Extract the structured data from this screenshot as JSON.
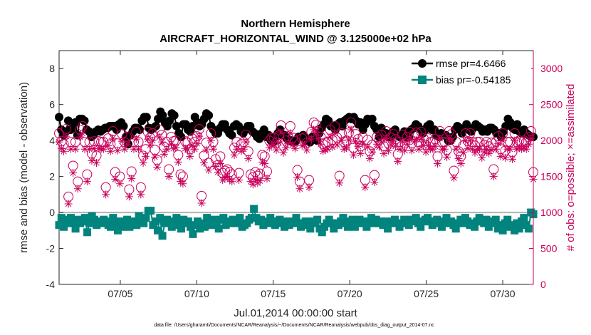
{
  "chart_data": {
    "type": "line",
    "title": "Northern Hemisphere",
    "subtitle": "AIRCRAFT_HORIZONTAL_WIND @ 3.125000e+02 hPa",
    "xlabel": "Jul.01,2014 00:00:00 start",
    "ylabel": "rmse and bias (model - observation)",
    "ylabel_right": "# of obs: o=possible; ×=assimilated",
    "footnote": "data file: /Users/gharamti/Documents/NCAR/Reanalysis/~/Documents/NCAR/Reanalysis/webpub/obs_diag_output_2014-07.nc",
    "xlim": [
      1.0,
      32.0
    ],
    "ylim": [
      -4,
      9
    ],
    "ylim_right": [
      0,
      3250
    ],
    "x_ticks": [
      {
        "day": 5,
        "label": "07/05"
      },
      {
        "day": 10,
        "label": "07/10"
      },
      {
        "day": 15,
        "label": "07/15"
      },
      {
        "day": 20,
        "label": "07/20"
      },
      {
        "day": 25,
        "label": "07/25"
      },
      {
        "day": 30,
        "label": "07/30"
      }
    ],
    "y_ticks": [
      {
        "value": -4,
        "label": "-4"
      },
      {
        "value": -2,
        "label": "-2"
      },
      {
        "value": 0,
        "label": "0"
      },
      {
        "value": 2,
        "label": "2"
      },
      {
        "value": 4,
        "label": "4"
      },
      {
        "value": 6,
        "label": "6"
      },
      {
        "value": 8,
        "label": "8"
      }
    ],
    "y_ticks_right": [
      {
        "value": 0,
        "label": "0"
      },
      {
        "value": 500,
        "label": "500"
      },
      {
        "value": 1000,
        "label": "1000"
      },
      {
        "value": 1500,
        "label": "1500"
      },
      {
        "value": 2000,
        "label": "2000"
      },
      {
        "value": 2500,
        "label": "2500"
      },
      {
        "value": 3000,
        "label": "3000"
      }
    ],
    "legend_position": "top-right",
    "series": [
      {
        "name": "rmse",
        "legend": "rmse pr=4.6466",
        "color": "#000000",
        "marker": "circle",
        "axis": "left",
        "values": [
          5.3,
          4.6,
          4.3,
          4.5,
          5.1,
          4.6,
          4.7,
          5.0,
          4.3,
          5.2,
          5.2,
          5.1,
          4.6,
          4.5,
          4.2,
          4.3,
          4.5,
          4.6,
          4.5,
          4.6,
          4.7,
          4.7,
          4.8,
          4.8,
          4.8,
          4.6,
          4.9,
          5.0,
          4.8,
          4.2,
          3.8,
          4.3,
          4.5,
          4.7,
          4.7,
          4.6,
          5.1,
          5.3,
          5.3,
          4.7,
          4.6,
          4.7,
          4.8,
          5.2,
          5.6,
          5.4,
          5.0,
          4.8,
          5.1,
          5.5,
          5.4,
          4.8,
          4.4,
          4.2,
          4.9,
          4.9,
          4.6,
          4.5,
          4.8,
          5.3,
          5.0,
          4.8,
          4.9,
          5.2,
          5.5,
          5.4,
          4.8,
          4.6,
          4.4,
          4.4,
          4.7,
          4.9,
          4.9,
          4.6,
          4.4,
          4.3,
          4.8,
          4.9,
          4.8,
          4.5,
          4.4,
          4.6,
          4.8,
          4.8,
          4.5,
          4.4,
          4.2,
          4.1,
          4.4,
          4.6,
          4.2,
          4.3,
          4.0,
          3.9,
          4.2,
          4.4,
          4.6,
          4.3,
          4.3,
          4.1,
          4.0,
          4.0,
          3.9,
          4.0,
          4.2,
          4.2,
          4.3,
          4.0,
          4.1,
          3.9,
          4.2,
          4.2,
          4.0,
          4.4,
          4.7,
          4.9,
          5.2,
          5.1,
          4.8,
          4.8,
          4.6,
          4.9,
          5.0,
          4.8,
          5.1,
          5.2,
          5.3,
          5.2,
          5.3,
          5.1,
          4.9,
          5.0,
          4.6,
          4.9,
          5.2,
          5.1,
          5.2,
          4.8,
          4.6,
          4.2,
          4.7,
          4.4,
          4.4,
          4.2,
          4.2,
          4.5,
          4.6,
          4.3,
          4.2,
          4.3,
          4.5,
          4.2,
          4.2,
          4.6,
          4.7,
          4.9,
          4.8,
          4.6,
          4.4,
          4.6,
          4.8,
          4.9,
          4.6,
          4.6,
          4.3,
          4.2,
          4.4,
          4.3,
          4.3,
          4.0,
          4.0,
          4.2,
          4.6,
          4.8,
          4.7,
          4.4,
          4.6,
          4.9,
          4.6,
          4.5,
          4.7,
          4.9,
          4.8,
          4.7,
          4.5,
          4.6,
          4.5,
          4.7,
          4.7,
          4.6,
          4.4,
          4.4,
          4.2,
          4.5,
          4.8,
          5.2,
          5.0,
          4.7,
          4.6,
          4.9,
          4.5,
          4.4,
          4.6,
          4.4,
          4.3,
          4.2,
          4.2
        ]
      },
      {
        "name": "bias",
        "legend": "bias pr=-0.54185",
        "color": "#00847d",
        "marker": "square",
        "axis": "left",
        "values": [
          -0.7,
          -0.3,
          -0.8,
          -0.4,
          -0.6,
          -0.3,
          -0.5,
          -0.9,
          -0.4,
          -0.6,
          -0.5,
          -0.3,
          -1.1,
          -0.6,
          -0.2,
          -0.4,
          -0.7,
          -0.5,
          -0.6,
          -0.4,
          -0.5,
          -0.7,
          -0.8,
          -0.3,
          -0.6,
          -1.0,
          -0.5,
          -0.8,
          -0.6,
          -0.4,
          -0.8,
          -0.6,
          -0.5,
          -0.7,
          -0.2,
          -0.4,
          -0.6,
          -0.3,
          0.1,
          0.1,
          -0.7,
          -0.5,
          -1.0,
          -0.3,
          -1.3,
          -0.6,
          -0.4,
          -0.5,
          -0.8,
          -0.6,
          -0.3,
          -0.7,
          -0.9,
          -0.4,
          -0.6,
          -0.5,
          -0.8,
          -1.2,
          -0.7,
          -0.5,
          -0.9,
          -0.6,
          -0.8,
          -0.3,
          -0.5,
          -0.7,
          -0.4,
          -0.6,
          -0.9,
          -0.4,
          -0.3,
          -0.7,
          -0.5,
          -0.6,
          -0.4,
          -0.5,
          -0.6,
          -0.3,
          -0.8,
          -0.7,
          -0.6,
          -0.4,
          -0.3,
          0.2,
          -0.3,
          -0.5,
          -0.4,
          -0.7,
          -0.5,
          -0.6,
          -0.3,
          -0.5,
          -0.7,
          -0.5,
          -0.4,
          -0.6,
          -0.8,
          -0.5,
          -0.7,
          -0.6,
          -0.5,
          -0.3,
          -0.6,
          -0.8,
          -0.6,
          -0.5,
          -0.7,
          -0.9,
          -0.5,
          -0.6,
          -0.4,
          -0.9,
          -1.1,
          -0.8,
          -0.6,
          -0.4,
          -0.6,
          -0.9,
          -0.6,
          -0.7,
          -0.5,
          -0.3,
          -0.6,
          -0.8,
          -0.5,
          -0.4,
          -0.8,
          -0.6,
          -0.4,
          -0.5,
          -0.6,
          -0.8,
          -0.5,
          -0.3,
          -0.6,
          -0.4,
          -0.6,
          -0.5,
          -0.7,
          -0.5,
          -0.9,
          -0.6,
          -0.5,
          -0.4,
          -0.6,
          -0.8,
          -0.6,
          -0.4,
          -0.5,
          -0.7,
          -0.4,
          -0.5,
          -0.3,
          -0.6,
          -0.8,
          -0.5,
          -0.4,
          -0.3,
          -0.5,
          -0.7,
          -0.5,
          -0.4,
          -0.6,
          -0.8,
          -0.5,
          -0.3,
          -0.6,
          -0.5,
          -0.7,
          -0.9,
          -0.6,
          -0.4,
          -0.6,
          -0.3,
          -0.5,
          -0.7,
          -0.6,
          -0.8,
          -0.5,
          -0.3,
          -0.5,
          -0.6,
          -0.4,
          -0.8,
          -0.6,
          -0.5,
          -0.4,
          -0.9,
          -0.7,
          -1.0,
          -0.6,
          -0.4,
          -0.8,
          -0.7,
          -1.0,
          -0.6,
          -0.9,
          -0.5,
          -0.3,
          -0.7,
          -0.9,
          0.0,
          -0.1
        ]
      },
      {
        "name": "possible",
        "legend": "o=possible",
        "color": "#c8005a",
        "marker": "open-circle",
        "axis": "right",
        "values": [
          2100,
          1990,
          1950,
          2160,
          1220,
          1980,
          1650,
          1980,
          1430,
          2150,
          2200,
          1980,
          1530,
          1980,
          1820,
          1990,
          1790,
          1990,
          1980,
          1980,
          1350,
          2030,
          1950,
          2130,
          1560,
          1960,
          1500,
          2090,
          1980,
          2050,
          1320,
          1570,
          1980,
          2120,
          1980,
          1350,
          1790,
          1880,
          2120,
          2040,
          2100,
          1870,
          1730,
          2150,
          2080,
          1910,
          1980,
          1600,
          2050,
          1990,
          2000,
          1800,
          1530,
          1500,
          1990,
          1970,
          1880,
          2030,
          1980,
          2060,
          2160,
          1230,
          1790,
          1970,
          1690,
          2100,
          1980,
          1740,
          1660,
          1780,
          1550,
          1580,
          1600,
          1560,
          1530,
          1900,
          1980,
          1550,
          1950,
          1980,
          2080,
          1850,
          1530,
          1490,
          1560,
          1510,
          1540,
          1800,
          1780,
          1570,
          2000,
          2040,
          2040,
          1970,
          2070,
          2210,
          1930,
          2000,
          2060,
          2200,
          2040,
          1990,
          1590,
          1430,
          2030,
          2040,
          1970,
          1450,
          2120,
          2250,
          2220,
          2130,
          2050,
          1950,
          1970,
          1980,
          2150,
          2010,
          2200,
          2040,
          1510,
          2100,
          1980,
          2000,
          2110,
          2250,
          1900,
          2090,
          2020,
          1920,
          2050,
          1450,
          2010,
          1850,
          1940,
          1520,
          2050,
          2010,
          2080,
          1920,
          2130,
          1960,
          2040,
          2090,
          2020,
          1810,
          1980,
          2080,
          1960,
          2050,
          2120,
          1960,
          2080,
          2110,
          1980,
          2120,
          2030,
          1940,
          2030,
          1980,
          1980,
          2020,
          1780,
          2130,
          1980,
          1980,
          1870,
          2130,
          2090,
          1580,
          1980,
          1850,
          1780,
          1930,
          2100,
          1990,
          2100,
          1980,
          1930,
          1980,
          1980,
          1860,
          1940,
          1980,
          1920,
          1970,
          1600,
          1980,
          2060,
          1880,
          2100,
          1860,
          1980,
          1980,
          1840,
          2100,
          1980,
          2000,
          1980,
          2000,
          1980,
          2050,
          2130,
          1560
        ]
      },
      {
        "name": "assimilated",
        "legend": "×=assimilated",
        "color": "#c8005a",
        "marker": "asterisk",
        "axis": "right",
        "values": [
          1980,
          1890,
          1850,
          2060,
          1120,
          1880,
          1550,
          1880,
          1330,
          2050,
          2100,
          1880,
          1430,
          1880,
          1720,
          1890,
          1690,
          1890,
          1880,
          1880,
          1250,
          1930,
          1850,
          2030,
          1460,
          1860,
          1400,
          1990,
          1880,
          1950,
          1220,
          1470,
          1880,
          2020,
          1880,
          1250,
          1690,
          1780,
          2020,
          1940,
          2000,
          1770,
          1630,
          2050,
          1980,
          1810,
          1880,
          1500,
          1950,
          1890,
          1900,
          1700,
          1430,
          1400,
          1890,
          1870,
          1780,
          1930,
          1880,
          1960,
          2060,
          1130,
          1690,
          1870,
          1590,
          2000,
          1880,
          1640,
          1560,
          1680,
          1450,
          1480,
          1500,
          1460,
          1430,
          1800,
          1880,
          1450,
          1850,
          1880,
          1980,
          1750,
          1430,
          1390,
          1460,
          1410,
          1440,
          1700,
          1680,
          1470,
          1900,
          1940,
          1940,
          1870,
          1970,
          2110,
          1830,
          1900,
          1960,
          2100,
          1940,
          1890,
          1490,
          1330,
          1930,
          1940,
          1870,
          1350,
          2020,
          2150,
          2120,
          2030,
          1950,
          1850,
          1870,
          1880,
          2050,
          1910,
          2100,
          1940,
          1410,
          2000,
          1880,
          1900,
          2010,
          2150,
          1800,
          1990,
          1920,
          1820,
          1950,
          1350,
          1910,
          1750,
          1840,
          1420,
          1950,
          1910,
          1980,
          1820,
          2030,
          1860,
          1940,
          1990,
          1920,
          1710,
          1880,
          1980,
          1860,
          1950,
          2020,
          1860,
          1980,
          2010,
          1880,
          2020,
          1930,
          1840,
          1930,
          1880,
          1880,
          1920,
          1680,
          2030,
          1880,
          1880,
          1770,
          2030,
          1990,
          1480,
          1880,
          1750,
          1680,
          1830,
          2000,
          1890,
          2000,
          1880,
          1830,
          1880,
          1880,
          1760,
          1840,
          1880,
          1820,
          1870,
          1500,
          1880,
          1960,
          1780,
          2000,
          1760,
          1880,
          1880,
          1740,
          2000,
          1880,
          1900,
          1880,
          1900,
          1880,
          1950,
          2030,
          1460
        ]
      }
    ]
  }
}
